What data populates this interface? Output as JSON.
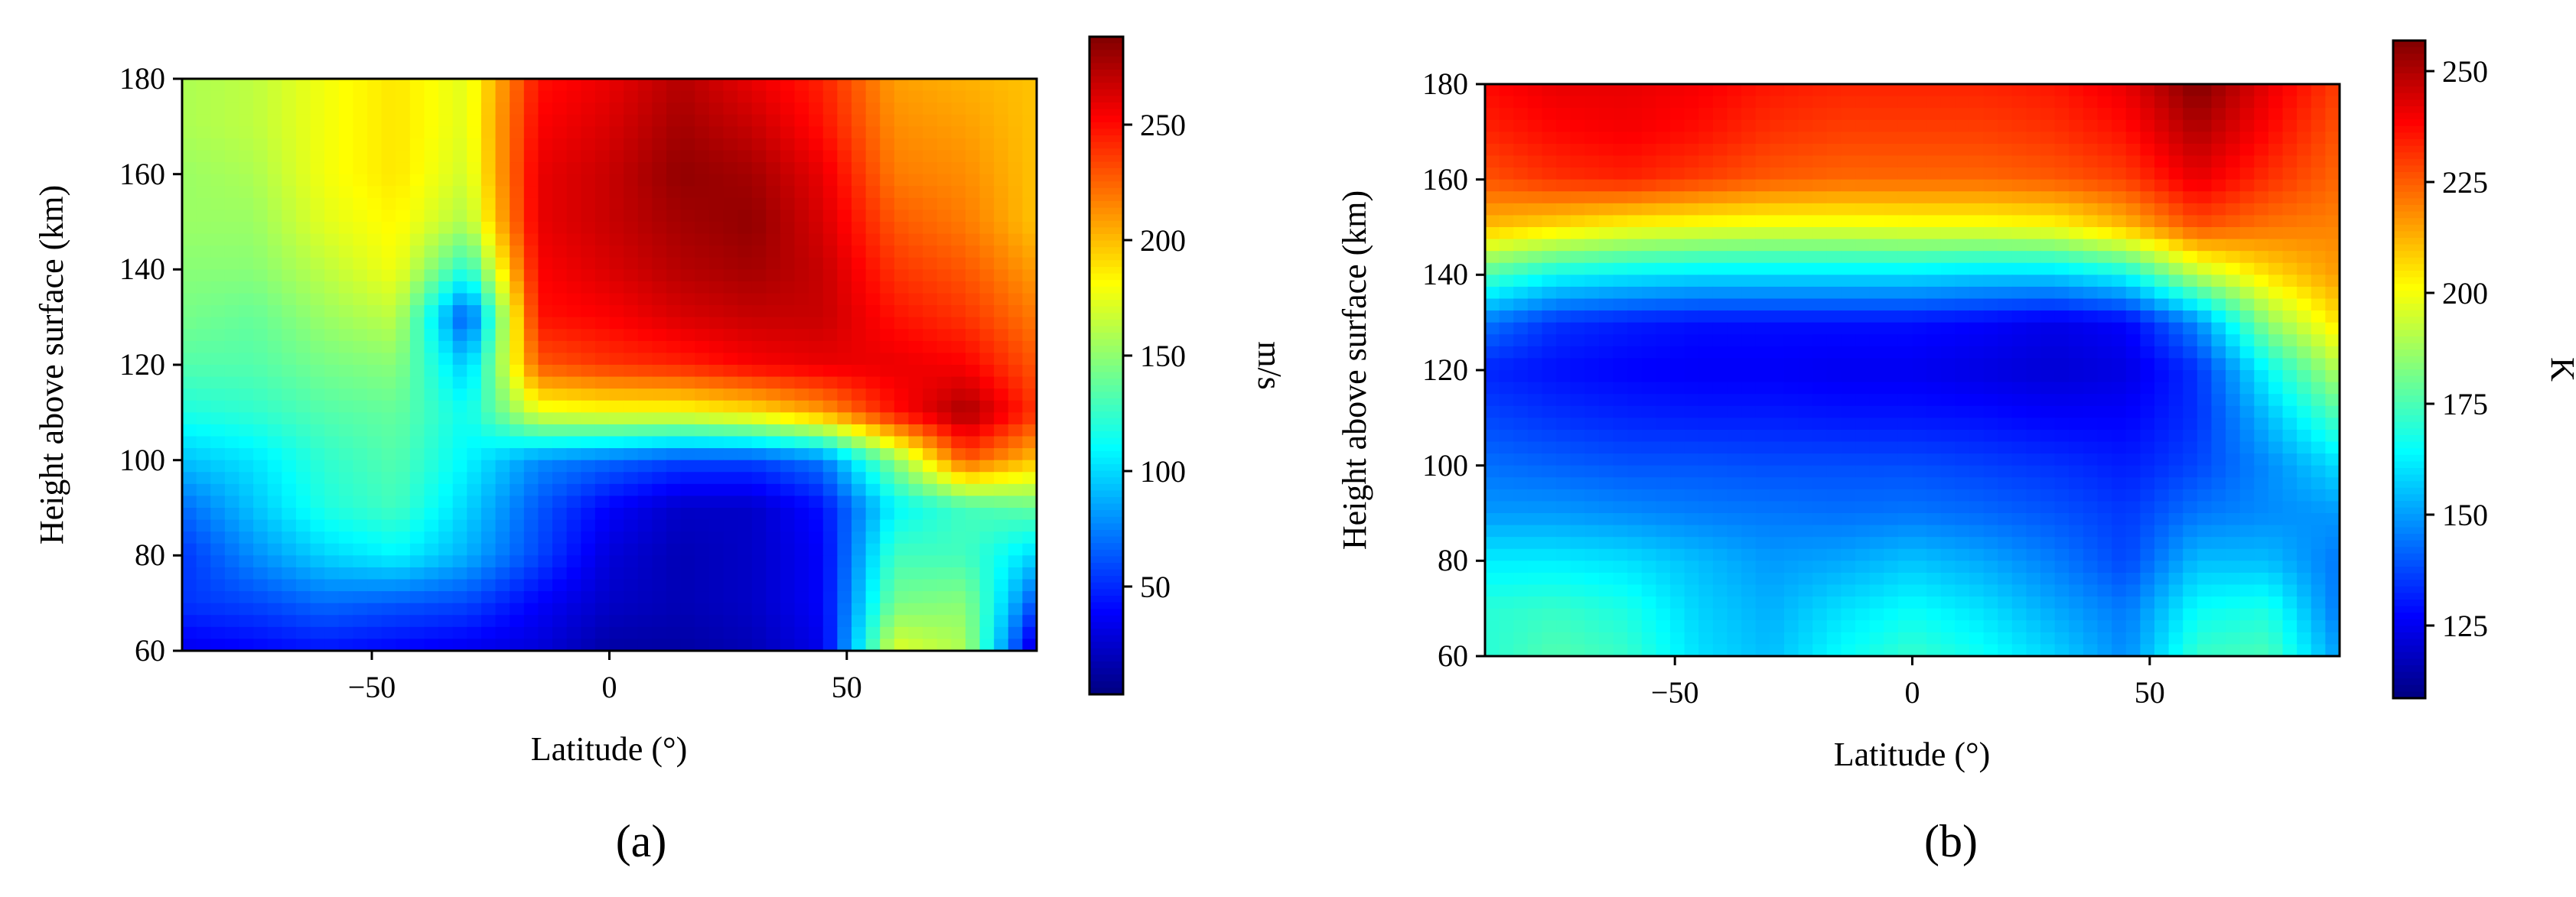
{
  "panels": [
    {
      "panel_label": "(a)",
      "xlabel": "Latitude (°)",
      "ylabel": "Height above surface (km)",
      "colorbar_label": "m/s",
      "colorbar_ticks": [
        "50",
        "100",
        "150",
        "200",
        "250"
      ],
      "xticks": [
        "−50",
        "0",
        "50"
      ],
      "yticks": [
        "60",
        "80",
        "100",
        "120",
        "140",
        "160",
        "180"
      ]
    },
    {
      "panel_label": "(b)",
      "xlabel": "Latitude (°)",
      "ylabel": "Height above surface (km)",
      "colorbar_label": "K",
      "colorbar_ticks": [
        "125",
        "150",
        "175",
        "200",
        "225",
        "250"
      ],
      "xticks": [
        "−50",
        "0",
        "50"
      ],
      "yticks": [
        "60",
        "80",
        "100",
        "120",
        "140",
        "160",
        "180"
      ]
    }
  ],
  "chart_data": [
    {
      "type": "heatmap",
      "title": "",
      "xlabel": "Latitude (°)",
      "ylabel": "Height above surface (km)",
      "xlim": [
        -90,
        90
      ],
      "ylim": [
        60,
        180
      ],
      "colormap": "jet",
      "colorbar": {
        "label": "m/s",
        "range": [
          5,
          290
        ],
        "ticks": [
          50,
          100,
          150,
          200,
          250
        ]
      },
      "x": [
        -90,
        -75,
        -60,
        -45,
        -30,
        -15,
        0,
        15,
        30,
        45,
        60,
        75,
        90
      ],
      "y": [
        60,
        70,
        80,
        90,
        100,
        110,
        120,
        130,
        140,
        150,
        160,
        170,
        180
      ],
      "z": [
        [
          35,
          40,
          45,
          40,
          35,
          30,
          15,
          15,
          20,
          35,
          175,
          160,
          20
        ],
        [
          55,
          60,
          70,
          65,
          60,
          40,
          25,
          20,
          25,
          40,
          145,
          150,
          60
        ],
        [
          55,
          80,
          100,
          110,
          90,
          60,
          30,
          20,
          25,
          40,
          130,
          130,
          100
        ],
        [
          70,
          95,
          120,
          130,
          100,
          65,
          40,
          25,
          25,
          45,
          110,
          130,
          140
        ],
        [
          95,
          105,
          125,
          135,
          110,
          80,
          70,
          60,
          60,
          75,
          150,
          230,
          200
        ],
        [
          120,
          125,
          135,
          140,
          115,
          175,
          180,
          180,
          190,
          210,
          250,
          280,
          240
        ],
        [
          135,
          135,
          145,
          150,
          95,
          230,
          240,
          245,
          255,
          260,
          260,
          255,
          230
        ],
        [
          145,
          140,
          155,
          165,
          60,
          250,
          255,
          265,
          270,
          270,
          250,
          240,
          220
        ],
        [
          150,
          150,
          165,
          180,
          120,
          255,
          265,
          275,
          280,
          270,
          240,
          230,
          210
        ],
        [
          155,
          155,
          175,
          185,
          160,
          260,
          270,
          280,
          285,
          265,
          230,
          220,
          200
        ],
        [
          155,
          160,
          180,
          190,
          170,
          260,
          270,
          285,
          280,
          260,
          220,
          215,
          200
        ],
        [
          160,
          165,
          180,
          190,
          175,
          255,
          265,
          280,
          270,
          250,
          215,
          210,
          200
        ],
        [
          160,
          165,
          180,
          190,
          175,
          250,
          260,
          275,
          260,
          245,
          210,
          205,
          200
        ]
      ]
    },
    {
      "type": "heatmap",
      "title": "",
      "xlabel": "Latitude (°)",
      "ylabel": "Height above surface (km)",
      "xlim": [
        -90,
        90
      ],
      "ylim": [
        60,
        180
      ],
      "colormap": "jet",
      "colorbar": {
        "label": "K",
        "range": [
          110,
          255
        ],
        "ticks": [
          125,
          150,
          175,
          200,
          225,
          250
        ]
      },
      "x": [
        -90,
        -75,
        -60,
        -45,
        -30,
        -15,
        0,
        15,
        30,
        45,
        60,
        75,
        90
      ],
      "y": [
        60,
        70,
        80,
        90,
        100,
        110,
        120,
        130,
        140,
        150,
        160,
        170,
        180
      ],
      "z": [
        [
          170,
          176,
          172,
          160,
          155,
          165,
          172,
          166,
          158,
          148,
          172,
          175,
          150
        ],
        [
          170,
          172,
          168,
          158,
          153,
          160,
          165,
          160,
          152,
          145,
          165,
          168,
          145
        ],
        [
          162,
          162,
          160,
          155,
          150,
          152,
          156,
          152,
          146,
          138,
          155,
          155,
          145
        ],
        [
          150,
          150,
          148,
          146,
          145,
          144,
          145,
          143,
          140,
          136,
          145,
          148,
          150
        ],
        [
          144,
          142,
          140,
          140,
          139,
          139,
          139,
          137,
          135,
          132,
          138,
          148,
          160
        ],
        [
          138,
          135,
          133,
          132,
          132,
          131,
          131,
          130,
          128,
          128,
          135,
          155,
          175
        ],
        [
          133,
          130,
          128,
          127,
          127,
          126,
          126,
          124,
          122,
          124,
          135,
          165,
          190
        ],
        [
          145,
          135,
          132,
          130,
          130,
          130,
          130,
          128,
          125,
          128,
          148,
          185,
          205
        ],
        [
          175,
          165,
          162,
          160,
          160,
          160,
          160,
          158,
          158,
          165,
          190,
          205,
          215
        ],
        [
          210,
          205,
          200,
          198,
          197,
          197,
          198,
          198,
          200,
          210,
          225,
          220,
          218
        ],
        [
          225,
          230,
          232,
          228,
          224,
          222,
          222,
          222,
          224,
          228,
          240,
          230,
          222
        ],
        [
          232,
          236,
          238,
          235,
          230,
          228,
          228,
          228,
          230,
          235,
          248,
          236,
          225
        ],
        [
          236,
          240,
          240,
          238,
          234,
          232,
          232,
          232,
          234,
          240,
          255,
          240,
          228
        ]
      ]
    }
  ]
}
